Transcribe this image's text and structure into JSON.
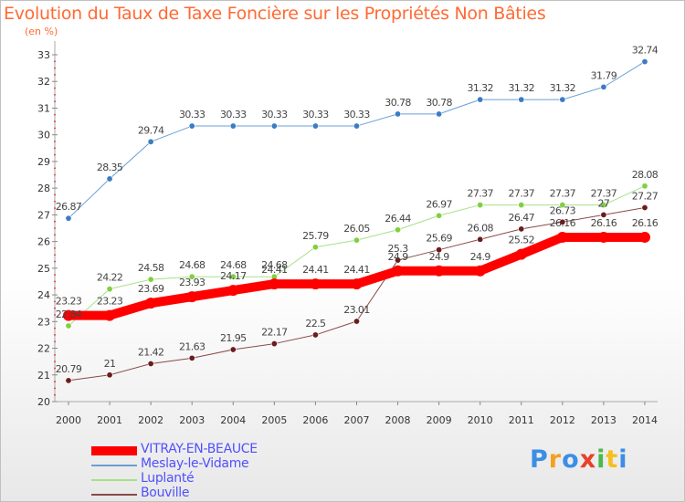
{
  "chart_data": {
    "type": "line",
    "title": "Evolution du Taux de Taxe Foncière sur les Propriétés Non Bâties",
    "ylabel": "(en %)",
    "xlabel": "",
    "ylim": [
      20,
      33
    ],
    "yticks": [
      "20",
      "21",
      "22",
      "23",
      "24",
      "25",
      "26",
      "27",
      "28",
      "29",
      "30",
      "31",
      "32",
      "33"
    ],
    "x": [
      "2000",
      "2001",
      "2002",
      "2003",
      "2004",
      "2005",
      "2006",
      "2007",
      "2008",
      "2009",
      "2010",
      "2011",
      "2012",
      "2013",
      "2014"
    ],
    "series": [
      {
        "name": "Meslay-le-Vidame",
        "color": "#6a9fd4",
        "marker": "#3b7cc4",
        "width": 1,
        "values": [
          26.87,
          28.35,
          29.74,
          30.33,
          30.33,
          30.33,
          30.33,
          30.33,
          30.78,
          30.78,
          31.32,
          31.32,
          31.32,
          31.79,
          32.74
        ],
        "labels": [
          "26.87",
          "28.35",
          "29.74",
          "30.33",
          "30.33",
          "30.33",
          "30.33",
          "30.33",
          "30.78",
          "30.78",
          "31.32",
          "31.32",
          "31.32",
          "31.79",
          "32.74"
        ]
      },
      {
        "name": "Luplanté",
        "color": "#a8e088",
        "marker": "#80d040",
        "width": 1,
        "values": [
          22.84,
          24.22,
          24.58,
          24.68,
          24.68,
          24.68,
          25.79,
          26.05,
          26.44,
          26.97,
          27.37,
          27.37,
          27.37,
          27.37,
          28.08
        ],
        "labels": [
          "22.84",
          "24.22",
          "24.58",
          "24.68",
          "24.68",
          "24.68",
          "25.79",
          "26.05",
          "26.44",
          "26.97",
          "27.37",
          "27.37",
          "27.37",
          "27.37",
          "28.08"
        ]
      },
      {
        "name": "Bouville",
        "color": "#8a4a4a",
        "marker": "#6b1c1c",
        "width": 1,
        "values": [
          20.79,
          21,
          21.42,
          21.63,
          21.95,
          22.17,
          22.5,
          23.01,
          25.3,
          25.69,
          26.08,
          26.47,
          26.73,
          27,
          27.27
        ],
        "labels": [
          "20.79",
          "21",
          "21.42",
          "21.63",
          "21.95",
          "22.17",
          "22.5",
          "23.01",
          "25.3",
          "25.69",
          "26.08",
          "26.47",
          "26.73",
          "27",
          "27.27"
        ]
      },
      {
        "name": "VITRAY-EN-BEAUCE",
        "color": "#ff0000",
        "marker": "#ff0000",
        "width": 10,
        "values": [
          23.23,
          23.23,
          23.69,
          23.93,
          24.17,
          24.41,
          24.41,
          24.41,
          24.9,
          24.9,
          24.9,
          25.52,
          26.16,
          26.16,
          26.16
        ],
        "labels": [
          "23.23",
          "23.23",
          "23.69",
          "23.93",
          "24.17",
          "24.41",
          "24.41",
          "24.41",
          "24.9",
          "24.9",
          "24.9",
          "25.52",
          "26.16",
          "26.16",
          "26.16"
        ]
      }
    ],
    "legend": [
      "VITRAY-EN-BEAUCE",
      "Meslay-le-Vidame",
      "Luplanté",
      "Bouville"
    ],
    "legend_position": "bottom-left",
    "grid": false
  },
  "brand": {
    "logo_letters": [
      "P",
      "r",
      "o",
      "x",
      "i",
      "t",
      "i"
    ],
    "logo_colors": [
      "#3a8ee6",
      "#f4a020",
      "#3a8ee6",
      "#e8402a",
      "#4ab84a",
      "#f4c020",
      "#3a8ee6"
    ]
  }
}
